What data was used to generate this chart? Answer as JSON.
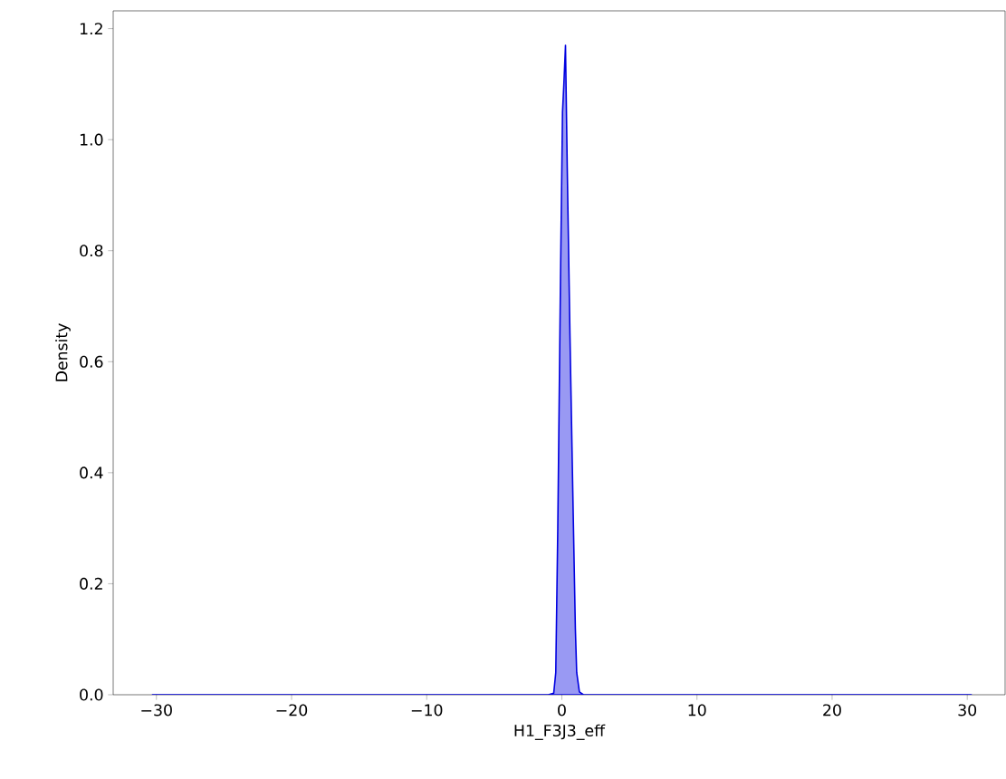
{
  "chart_data": {
    "type": "area",
    "xlabel": "H1_F3J3_eff",
    "ylabel": "Density",
    "xlim": [
      -33.2,
      32.8
    ],
    "ylim": [
      0,
      1.232
    ],
    "xticks": [
      {
        "value": -30,
        "label": "−30"
      },
      {
        "value": -20,
        "label": "−20"
      },
      {
        "value": -10,
        "label": "−10"
      },
      0,
      10,
      20,
      30
    ],
    "yticks": [
      {
        "value": 0,
        "label": "0.0"
      },
      {
        "value": 0.2,
        "label": "0.2"
      },
      {
        "value": 0.4,
        "label": "0.4"
      },
      {
        "value": 0.6,
        "label": "0.6"
      },
      {
        "value": 0.8,
        "label": "0.8"
      },
      {
        "value": 1.0,
        "label": "1.0"
      },
      {
        "value": 1.2,
        "label": "1.2"
      }
    ],
    "series": [
      {
        "color": "#0000e0",
        "x": [
          -30.3,
          -5,
          -1,
          -0.6,
          -0.45,
          -0.3,
          -0.1,
          0.05,
          0.15,
          0.27,
          0.4,
          0.6,
          0.8,
          1.0,
          1.1,
          1.3,
          1.6,
          5,
          30.3
        ],
        "values": [
          0,
          0,
          0,
          0.003,
          0.04,
          0.3,
          0.75,
          1.05,
          1.1,
          1.17,
          0.95,
          0.65,
          0.38,
          0.12,
          0.04,
          0.005,
          0,
          0,
          0
        ]
      }
    ]
  }
}
